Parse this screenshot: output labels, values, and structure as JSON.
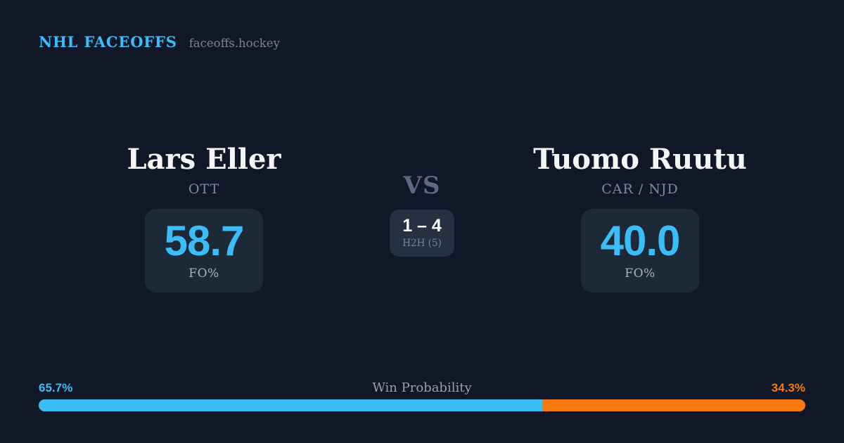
{
  "brand": {
    "title": "NHL FACEOFFS",
    "domain": "faceoffs.hockey"
  },
  "players": {
    "left": {
      "name": "Lars Eller",
      "team": "OTT",
      "stat_value": "58.7",
      "stat_label": "FO%"
    },
    "right": {
      "name": "Tuomo Ruutu",
      "team": "CAR / NJD",
      "stat_value": "40.0",
      "stat_label": "FO%"
    }
  },
  "matchup": {
    "vs_label": "VS",
    "h2h_score": "1 – 4",
    "h2h_label": "H2H (5)"
  },
  "win_probability": {
    "label": "Win Probability",
    "left_pct_label": "65.7%",
    "right_pct_label": "34.3%",
    "left_value": 65.7,
    "right_value": 34.3
  },
  "colors": {
    "background": "#101727",
    "card": "#1e2938",
    "card_h2h": "#253040",
    "accent_blue": "#3bbdf7",
    "accent_orange": "#f8790f"
  }
}
